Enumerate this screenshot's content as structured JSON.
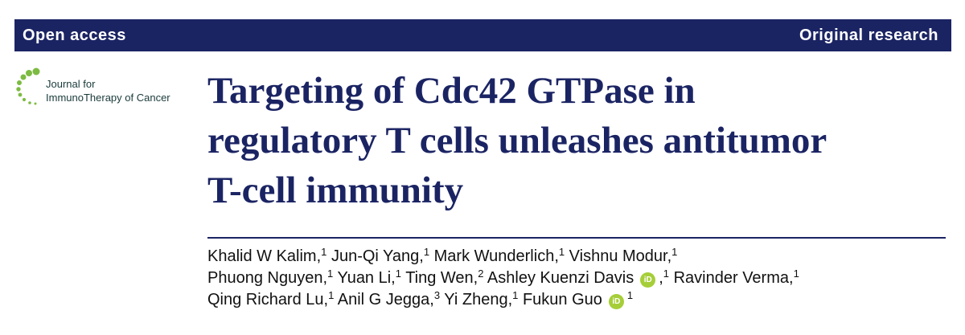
{
  "header": {
    "left": "Open access",
    "right": "Original research"
  },
  "journal": {
    "lines": [
      "Journal for",
      "ImmunoTherapy of Cancer"
    ]
  },
  "title": {
    "lines": [
      "Targeting of Cdc42 GTPase in",
      "regulatory T cells unleashes antitumor",
      "T-cell immunity"
    ]
  },
  "orcid_icon": "iD",
  "author_lines": [
    [
      {
        "name": "Khalid W Kalim,",
        "sup": 1
      },
      {
        "name": "Jun-Qi Yang,",
        "sup": 1
      },
      {
        "name": "Mark Wunderlich,",
        "sup": 1
      },
      {
        "name": "Vishnu Modur,",
        "sup": 1
      }
    ],
    [
      {
        "name": "Phuong Nguyen,",
        "sup": 1
      },
      {
        "name": "Yuan Li,",
        "sup": 1
      },
      {
        "name": "Ting Wen,",
        "sup": 2
      },
      {
        "name": "Ashley Kuenzi Davis",
        "orcid": true,
        "suffix": ",",
        "sup": 1
      },
      {
        "name": "Ravinder Verma,",
        "sup": 1
      }
    ],
    [
      {
        "name": "Qing Richard Lu,",
        "sup": 1
      },
      {
        "name": "Anil G Jegga,",
        "sup": 3
      },
      {
        "name": "Yi Zheng,",
        "sup": 1
      },
      {
        "name": "Fukun Guo",
        "orcid": true,
        "sup": 1
      }
    ]
  ]
}
